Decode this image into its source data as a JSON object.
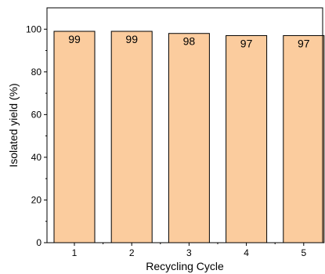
{
  "chart_data": {
    "type": "bar",
    "title": "",
    "xlabel": "Recycling Cycle",
    "ylabel": "Isolated yield (%)",
    "categories": [
      "1",
      "2",
      "3",
      "4",
      "5"
    ],
    "values": [
      99,
      99,
      98,
      97,
      97
    ],
    "data_labels": [
      "99",
      "99",
      "98",
      "97",
      "97"
    ],
    "ylim": [
      0,
      110
    ],
    "yticks": [
      "0",
      "20",
      "40",
      "60",
      "80",
      "100"
    ],
    "grid": false,
    "legend": "none",
    "bar_color": "#FBCC9E",
    "bar_edge_color": "#000000"
  }
}
